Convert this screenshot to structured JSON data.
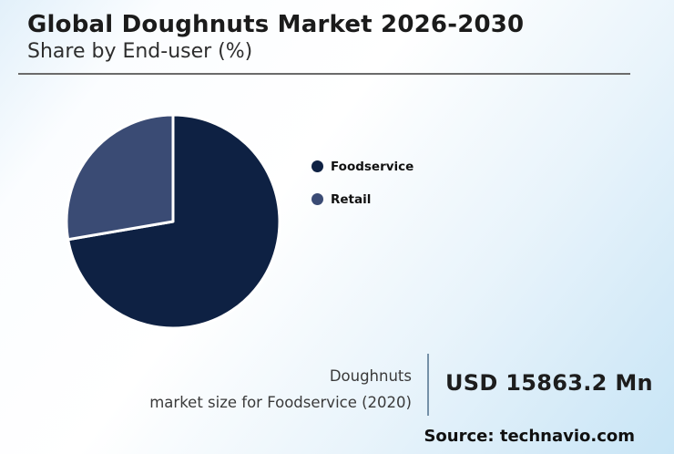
{
  "header": {
    "title": "Global Doughnuts Market 2026-2030",
    "subtitle": "Share by End-user (%)"
  },
  "chart_data": {
    "type": "pie",
    "title": "Global Doughnuts Market 2026-2030",
    "subtitle": "Share by End-user (%)",
    "unit": "%",
    "categories": [
      "Foodservice",
      "Retail"
    ],
    "values": [
      72.3,
      27.7
    ],
    "colors": [
      "#0e2143",
      "#3a4b74"
    ],
    "slice_border_color": "#ffffff",
    "legend_position": "right",
    "start_angle_deg": 0,
    "direction": "clockwise"
  },
  "footer": {
    "caption_line1": "Doughnuts",
    "caption_line2": "market size for Foodservice (2020)",
    "value": "USD 15863.2 Mn",
    "source": "Source: technavio.com"
  },
  "colors": {
    "foodservice": "#0e2143",
    "retail": "#3a4b74",
    "background_top_left": "#e2f0fa",
    "background_center": "#ffffff",
    "background_bottom_right": "#c8e5f6",
    "title_text": "#1b1b1b",
    "rule": "#6b6b6b",
    "divider": "#7591a8"
  }
}
